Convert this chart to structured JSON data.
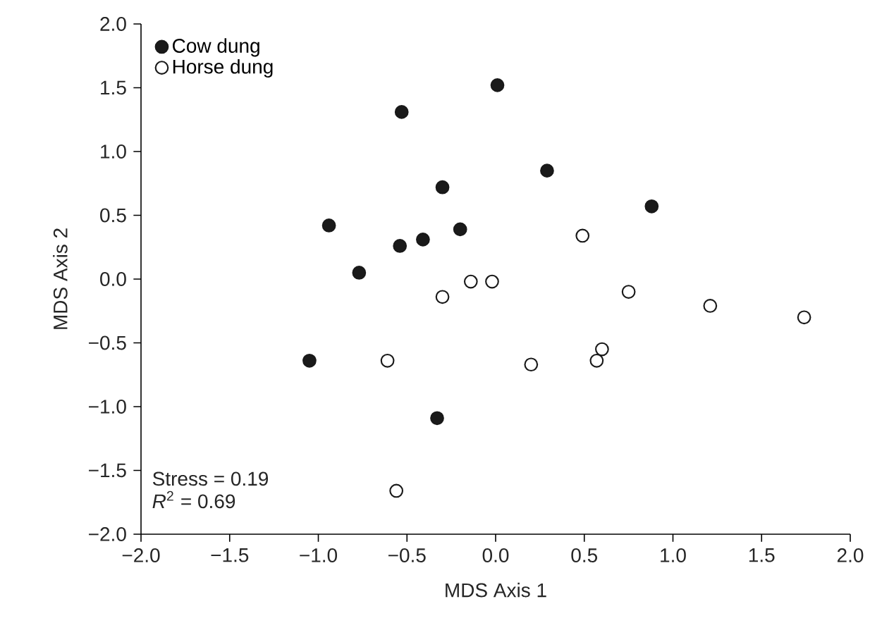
{
  "chart_data": {
    "type": "scatter",
    "xlabel": "MDS Axis 1",
    "ylabel": "MDS Axis 2",
    "xlim": [
      -2.0,
      2.0
    ],
    "ylim": [
      -2.0,
      2.0
    ],
    "xticks": [
      {
        "value": -2.0,
        "label": "−2.0"
      },
      {
        "value": -1.5,
        "label": "−1.5"
      },
      {
        "value": -1.0,
        "label": "−1.0"
      },
      {
        "value": -0.5,
        "label": "−0.5"
      },
      {
        "value": 0.0,
        "label": "0.0"
      },
      {
        "value": 0.5,
        "label": "0.5"
      },
      {
        "value": 1.0,
        "label": "1.0"
      },
      {
        "value": 1.5,
        "label": "1.5"
      },
      {
        "value": 2.0,
        "label": "2.0"
      }
    ],
    "yticks": [
      {
        "value": -2.0,
        "label": "−2.0"
      },
      {
        "value": -1.5,
        "label": "−1.5"
      },
      {
        "value": -1.0,
        "label": "−1.0"
      },
      {
        "value": -0.5,
        "label": "−0.5"
      },
      {
        "value": 0.0,
        "label": "0.0"
      },
      {
        "value": 0.5,
        "label": "0.5"
      },
      {
        "value": 1.0,
        "label": "1.0"
      },
      {
        "value": 1.5,
        "label": "1.5"
      },
      {
        "value": 2.0,
        "label": "2.0"
      }
    ],
    "marker": "circle",
    "legend": "top left",
    "grid": false,
    "series": [
      {
        "name": "Cow dung",
        "color": "#1a1a1a",
        "x": [
          -0.53,
          0.01,
          -0.3,
          -0.94,
          -0.2,
          -0.54,
          -0.41,
          -0.77,
          0.29,
          0.88,
          -1.05,
          -0.33
        ],
        "values": [
          1.31,
          1.52,
          0.72,
          0.42,
          0.39,
          0.26,
          0.31,
          0.05,
          0.85,
          0.57,
          -0.64,
          -1.09
        ]
      },
      {
        "name": "Horse dung",
        "color": "#ffffff",
        "x": [
          -0.3,
          -0.14,
          -0.02,
          0.49,
          -0.61,
          -0.56,
          0.75,
          1.21,
          1.74,
          0.2,
          0.57,
          0.6
        ],
        "values": [
          -0.14,
          -0.02,
          -0.02,
          0.34,
          -0.64,
          -1.66,
          -0.1,
          -0.21,
          -0.3,
          -0.67,
          -0.64,
          -0.55
        ]
      }
    ],
    "annotations": [
      "Stress = 0.19",
      "*R*$^{2}$ = 0.69"
    ]
  }
}
